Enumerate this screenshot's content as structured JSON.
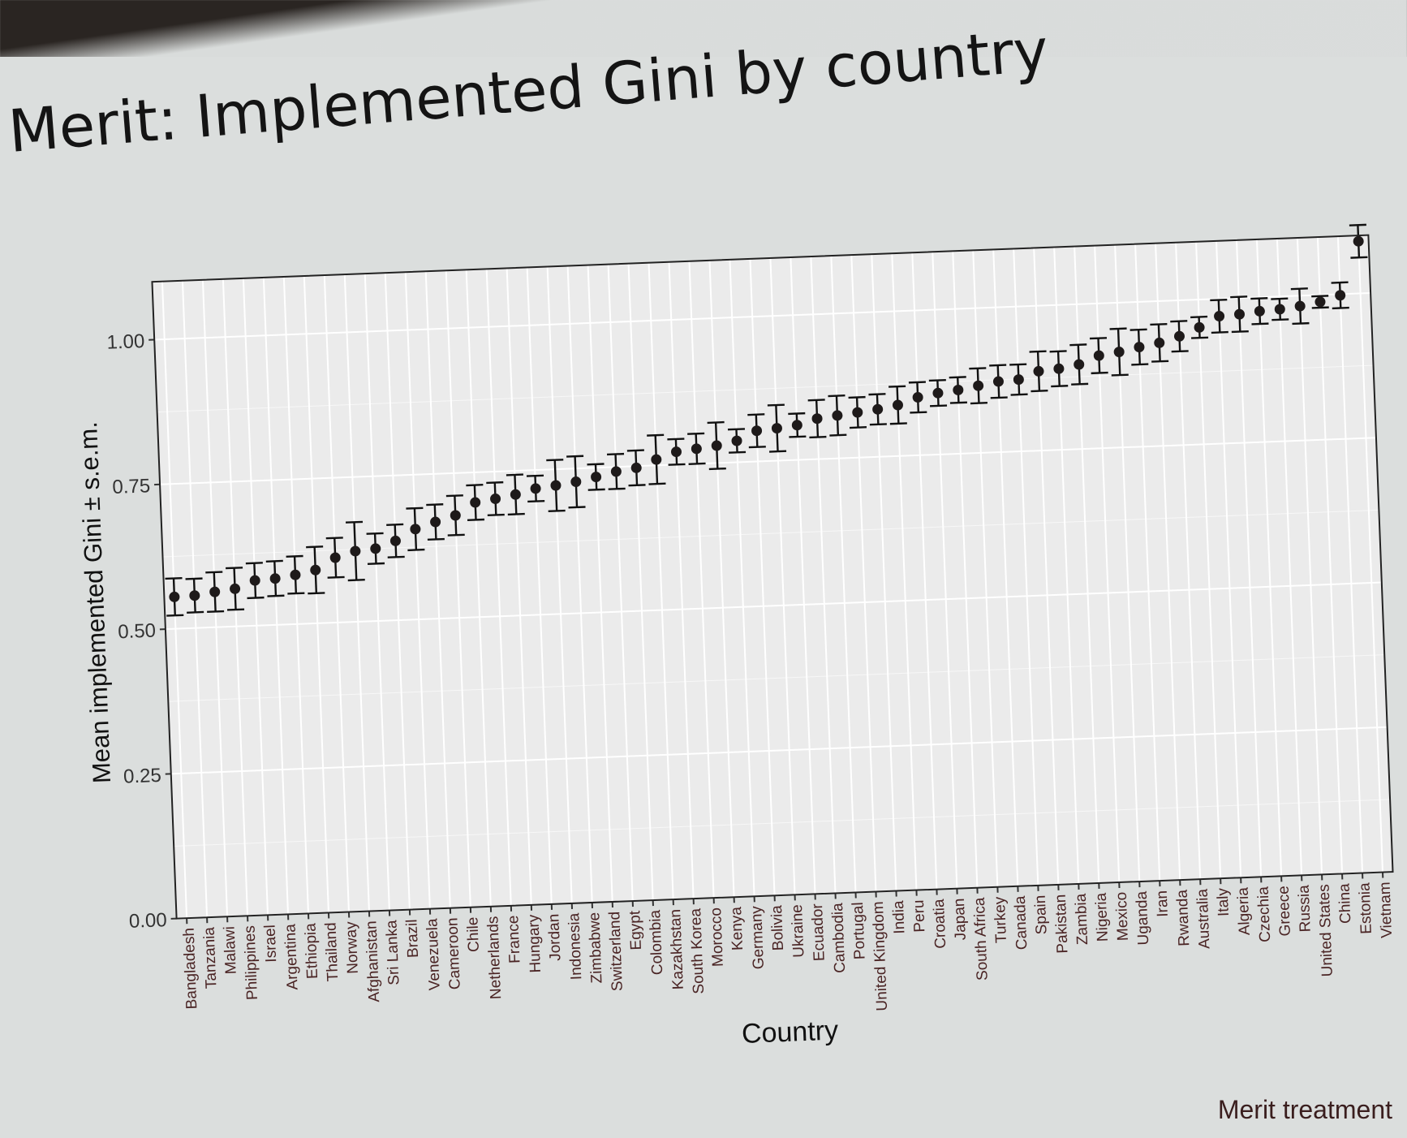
{
  "slide": {
    "title": "Merit: Implemented Gini by country",
    "footer_label": "Merit treatment"
  },
  "chart_data": {
    "type": "scatter",
    "title": "",
    "xlabel": "Country",
    "ylabel": "Mean implemented Gini ± s.e.m.",
    "ylim": [
      0,
      1.1
    ],
    "yticks": [
      0.0,
      0.25,
      0.5,
      0.75,
      1.0
    ],
    "ytick_labels": [
      "0.00",
      "0.25",
      "0.50",
      "0.75",
      "1.00"
    ],
    "grid": true,
    "error_bars": true,
    "series": [
      {
        "x": [
          "Bangladesh",
          "Tanzania",
          "Malawi",
          "Philippines",
          "Israel",
          "Argentina",
          "Ethiopia",
          "Thailand",
          "Norway",
          "Afghanistan",
          "Sri Lanka",
          "Brazil",
          "Venezuela",
          "Cameroon",
          "Chile",
          "Netherlands",
          "France",
          "Hungary",
          "Jordan",
          "Indonesia",
          "Zimbabwe",
          "Switzerland",
          "Egypt",
          "Colombia",
          "Kazakhstan",
          "South Korea",
          "Morocco",
          "Kenya",
          "Germany",
          "Bolivia",
          "Ukraine",
          "Ecuador",
          "Cambodia",
          "Portugal",
          "United Kingdom",
          "India",
          "Peru",
          "Croatia",
          "Japan",
          "South Africa",
          "Turkey",
          "Canada",
          "Spain",
          "Pakistan",
          "Zambia",
          "Nigeria",
          "Mexico",
          "Uganda",
          "Iran",
          "Rwanda",
          "Australia",
          "Italy",
          "Algeria",
          "Czechia",
          "Greece",
          "Russia",
          "United States",
          "China",
          "Estonia",
          "Vietnam"
        ],
        "y": [
          0.555,
          0.556,
          0.561,
          0.565,
          0.578,
          0.58,
          0.585,
          0.592,
          0.612,
          0.622,
          0.625,
          0.637,
          0.656,
          0.667,
          0.677,
          0.698,
          0.703,
          0.709,
          0.718,
          0.722,
          0.727,
          0.734,
          0.742,
          0.747,
          0.76,
          0.772,
          0.776,
          0.78,
          0.787,
          0.803,
          0.806,
          0.81,
          0.82,
          0.824,
          0.828,
          0.832,
          0.838,
          0.85,
          0.856,
          0.86,
          0.866,
          0.872,
          0.874,
          0.887,
          0.89,
          0.896,
          0.91,
          0.915,
          0.922,
          0.928,
          0.938,
          0.952,
          0.97,
          0.972,
          0.976,
          0.978,
          0.982,
          0.988,
          0.998,
          1.09
        ],
        "err": [
          0.032,
          0.029,
          0.034,
          0.036,
          0.03,
          0.03,
          0.032,
          0.04,
          0.034,
          0.05,
          0.026,
          0.028,
          0.036,
          0.03,
          0.034,
          0.03,
          0.028,
          0.034,
          0.022,
          0.044,
          0.044,
          0.022,
          0.03,
          0.03,
          0.042,
          0.022,
          0.026,
          0.04,
          0.02,
          0.028,
          0.04,
          0.02,
          0.032,
          0.034,
          0.026,
          0.026,
          0.032,
          0.026,
          0.022,
          0.022,
          0.03,
          0.028,
          0.026,
          0.034,
          0.03,
          0.034,
          0.03,
          0.04,
          0.03,
          0.032,
          0.026,
          0.018,
          0.028,
          0.03,
          0.022,
          0.018,
          0.03,
          0.01,
          0.022,
          0.028
        ]
      }
    ]
  }
}
